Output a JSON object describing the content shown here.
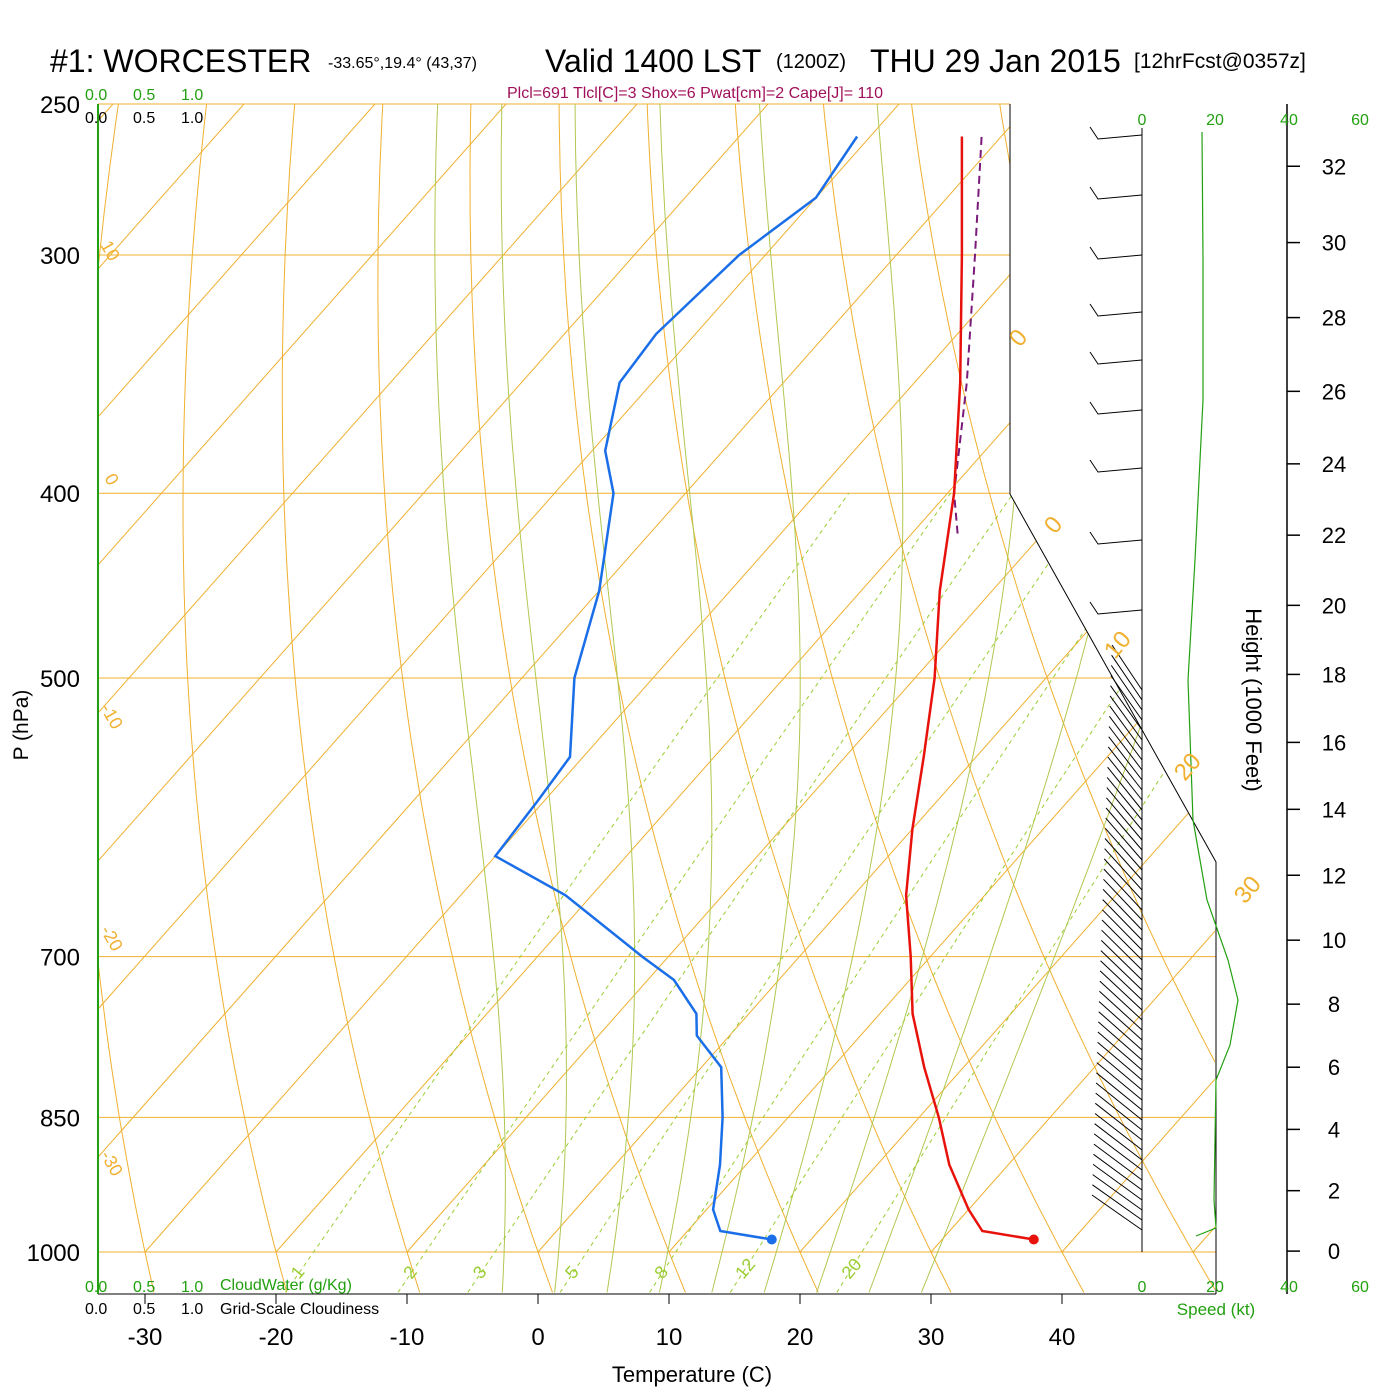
{
  "header": {
    "station": "#1: WORCESTER",
    "coords": "-33.65°,19.4° (43,37)",
    "valid": "Valid 1400 LST",
    "zulu": "(1200Z)",
    "date": "THU 29 Jan 2015",
    "forecast": "[12hrFcst@0357z]",
    "indices": "Plcl=691 Tlcl[C]=3 Shox=6 Pwat[cm]=2 Cape[J]= 110"
  },
  "scales": {
    "cloudwater_top": [
      "0.0",
      "0.5",
      "1.0"
    ],
    "cloudiness_top": [
      "0.0",
      "0.5",
      "1.0"
    ],
    "cloudwater_bottom": [
      "0.0",
      "0.5",
      "1.0"
    ],
    "cloudwater_label": "CloudWater (g/Kg)",
    "cloudiness_bottom": [
      "0.0",
      "0.5",
      "1.0"
    ],
    "cloudiness_label": "Grid-Scale Cloudiness",
    "speed_ticks": [
      "0",
      "20",
      "40",
      "60"
    ],
    "speed_label": "Speed (kt)"
  },
  "colors": {
    "temperature": "#e8120c",
    "dewpoint": "#1a6ee8",
    "parcel": "#7a1a7a",
    "isotherm": "#f0b030",
    "mixing_ratio": "#9acd32",
    "adiabat": "#b0c850",
    "green_label": "#22a010",
    "indices_text": "#a0105a"
  },
  "chart_data": {
    "type": "skew-t",
    "xlabel": "Temperature (C)",
    "ylabel": "P (hPa)",
    "height_label": "Height (1000 Feet)",
    "x_ticks": [
      -30,
      -20,
      -10,
      0,
      10,
      20,
      30,
      40
    ],
    "p_ticks": [
      250,
      300,
      400,
      500,
      700,
      850,
      1000
    ],
    "height_ticks": [
      0,
      2,
      4,
      6,
      8,
      10,
      12,
      14,
      16,
      18,
      20,
      22,
      24,
      26,
      28,
      30,
      32
    ],
    "temperature_profile": [
      {
        "p": 985,
        "t": 37.0
      },
      {
        "p": 975,
        "t": 32.5
      },
      {
        "p": 950,
        "t": 30.0
      },
      {
        "p": 900,
        "t": 25.5
      },
      {
        "p": 850,
        "t": 21.5
      },
      {
        "p": 800,
        "t": 17.0
      },
      {
        "p": 750,
        "t": 12.5
      },
      {
        "p": 700,
        "t": 8.5
      },
      {
        "p": 650,
        "t": 4.0
      },
      {
        "p": 600,
        "t": 0.0
      },
      {
        "p": 550,
        "t": -4.0
      },
      {
        "p": 500,
        "t": -8.5
      },
      {
        "p": 450,
        "t": -14.0
      },
      {
        "p": 400,
        "t": -19.5
      },
      {
        "p": 350,
        "t": -26.5
      },
      {
        "p": 300,
        "t": -35.0
      },
      {
        "p": 260,
        "t": -43.0
      }
    ],
    "dewpoint_profile": [
      {
        "p": 985,
        "t": 17.0
      },
      {
        "p": 975,
        "t": 12.5
      },
      {
        "p": 950,
        "t": 10.5
      },
      {
        "p": 900,
        "t": 8.0
      },
      {
        "p": 850,
        "t": 5.0
      },
      {
        "p": 800,
        "t": 1.5
      },
      {
        "p": 770,
        "t": -2.5
      },
      {
        "p": 750,
        "t": -4.0
      },
      {
        "p": 720,
        "t": -8.0
      },
      {
        "p": 700,
        "t": -12.0
      },
      {
        "p": 650,
        "t": -22.0
      },
      {
        "p": 620,
        "t": -30.0
      },
      {
        "p": 580,
        "t": -30.5
      },
      {
        "p": 550,
        "t": -31.0
      },
      {
        "p": 500,
        "t": -36.0
      },
      {
        "p": 450,
        "t": -40.0
      },
      {
        "p": 400,
        "t": -45.5
      },
      {
        "p": 380,
        "t": -49.0
      },
      {
        "p": 350,
        "t": -52.5
      },
      {
        "p": 330,
        "t": -53.0
      },
      {
        "p": 300,
        "t": -52.0
      },
      {
        "p": 280,
        "t": -50.0
      },
      {
        "p": 260,
        "t": -51.0
      }
    ],
    "parcel_profile": [
      {
        "p": 420,
        "t": -16.5
      },
      {
        "p": 400,
        "t": -19.5
      },
      {
        "p": 350,
        "t": -26.0
      },
      {
        "p": 300,
        "t": -34.0
      },
      {
        "p": 260,
        "t": -41.5
      }
    ],
    "surface_temperature": 37.0,
    "surface_dewpoint": 17.0,
    "isotherm_labels": [
      {
        "t": -10,
        "label": "-10"
      },
      {
        "t": 0,
        "label": "0"
      },
      {
        "t": 10,
        "label": "10"
      },
      {
        "t": 20,
        "label": "20"
      },
      {
        "t": 30,
        "label": "30"
      }
    ],
    "left_isotherm_labels": [
      "10",
      "0",
      "-10",
      "-20",
      "-30"
    ],
    "mixing_ratios": [
      {
        "w": 1,
        "label": "1"
      },
      {
        "w": 2,
        "label": "2"
      },
      {
        "w": 3,
        "label": "3"
      },
      {
        "w": 5,
        "label": "5"
      },
      {
        "w": 8,
        "label": "8"
      },
      {
        "w": 12,
        "label": "12"
      },
      {
        "w": 20,
        "label": "20"
      }
    ]
  }
}
